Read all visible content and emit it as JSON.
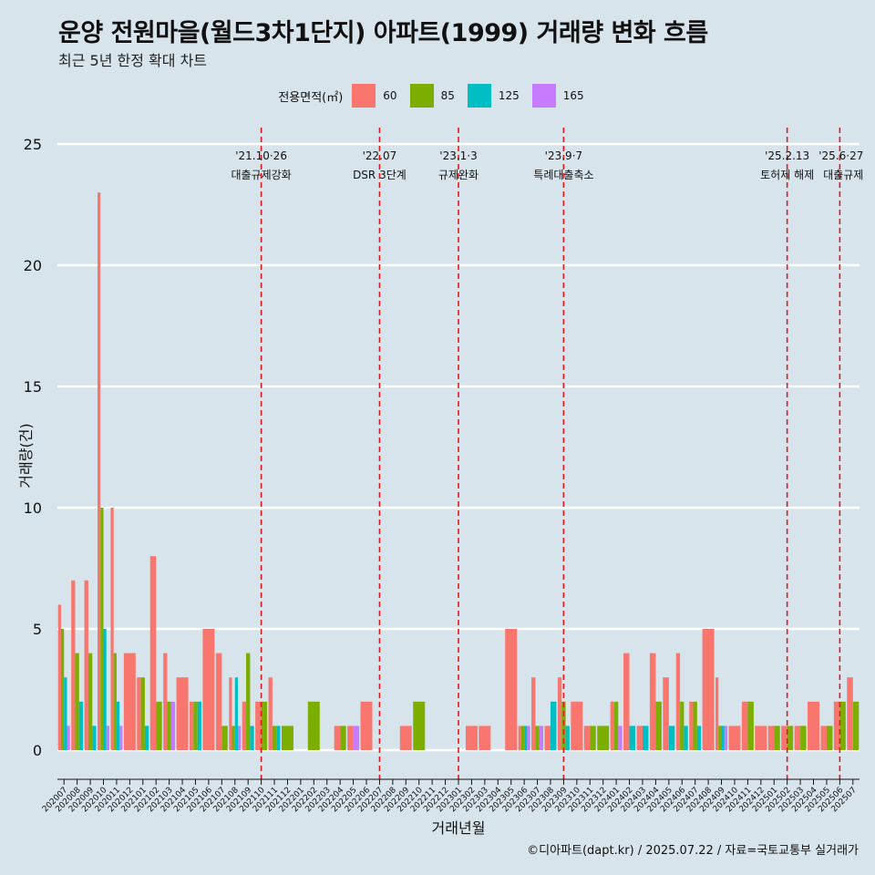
{
  "title": "운양 전원마을(월드3차1단지) 아파트(1999) 거래량 변화 흐름",
  "subtitle": "최근 5년 한정 확대 차트",
  "legend": {
    "title": "전용면적(㎡)"
  },
  "caption": "©디아파트(dapt.kr) / 2025.07.22 / 자료=국토교통부 실거래가",
  "chart_data": {
    "type": "bar",
    "xlabel": "거래년월",
    "ylabel": "거래량(건)",
    "ylim": [
      0,
      25
    ],
    "yticks": [
      0,
      5,
      10,
      15,
      20,
      25
    ],
    "grid": true,
    "legend_position": "top",
    "categories": [
      "202007",
      "202008",
      "202009",
      "202010",
      "202011",
      "202012",
      "202101",
      "202102",
      "202103",
      "202104",
      "202105",
      "202106",
      "202107",
      "202108",
      "202109",
      "202110",
      "202111",
      "202112",
      "202201",
      "202202",
      "202203",
      "202204",
      "202205",
      "202206",
      "202207",
      "202208",
      "202209",
      "202210",
      "202211",
      "202212",
      "202301",
      "202302",
      "202303",
      "202304",
      "202305",
      "202306",
      "202307",
      "202308",
      "202309",
      "202310",
      "202311",
      "202312",
      "202401",
      "202402",
      "202403",
      "202404",
      "202405",
      "202406",
      "202407",
      "202408",
      "202409",
      "202410",
      "202411",
      "202412",
      "202501",
      "202502",
      "202503",
      "202504",
      "202505",
      "202506",
      "202507"
    ],
    "series": [
      {
        "name": "60",
        "color": "#F8766D",
        "values": [
          6,
          7,
          7,
          23,
          10,
          4,
          3,
          8,
          4,
          3,
          2,
          5,
          4,
          3,
          2,
          2,
          3,
          0,
          0,
          0,
          0,
          1,
          1,
          2,
          0,
          0,
          1,
          0,
          0,
          0,
          0,
          1,
          1,
          0,
          5,
          1,
          3,
          1,
          3,
          2,
          1,
          0,
          2,
          4,
          1,
          4,
          3,
          4,
          2,
          5,
          3,
          1,
          2,
          1,
          1,
          1,
          1,
          2,
          1,
          2,
          3
        ]
      },
      {
        "name": "85",
        "color": "#7CAE00",
        "values": [
          5,
          4,
          4,
          10,
          4,
          0,
          3,
          2,
          2,
          0,
          2,
          0,
          1,
          1,
          4,
          2,
          1,
          1,
          0,
          2,
          0,
          1,
          0,
          0,
          0,
          0,
          0,
          2,
          0,
          0,
          0,
          0,
          0,
          0,
          0,
          1,
          1,
          0,
          2,
          0,
          1,
          1,
          2,
          0,
          0,
          2,
          0,
          2,
          2,
          0,
          1,
          0,
          2,
          0,
          1,
          1,
          1,
          0,
          1,
          2,
          2
        ]
      },
      {
        "name": "125",
        "color": "#00BFC4",
        "values": [
          3,
          2,
          1,
          5,
          2,
          0,
          1,
          0,
          0,
          0,
          2,
          0,
          0,
          3,
          1,
          0,
          1,
          0,
          0,
          0,
          0,
          0,
          0,
          0,
          0,
          0,
          0,
          0,
          0,
          0,
          0,
          0,
          0,
          0,
          0,
          1,
          0,
          2,
          1,
          0,
          0,
          0,
          0,
          1,
          1,
          0,
          1,
          1,
          1,
          0,
          1,
          0,
          0,
          0,
          0,
          0,
          0,
          0,
          0,
          0,
          0
        ]
      },
      {
        "name": "165",
        "color": "#C77CFF",
        "values": [
          1,
          0,
          0,
          1,
          1,
          0,
          0,
          0,
          2,
          0,
          0,
          0,
          0,
          1,
          0,
          0,
          0,
          0,
          0,
          0,
          0,
          0,
          1,
          0,
          0,
          0,
          0,
          0,
          0,
          0,
          0,
          0,
          0,
          0,
          0,
          1,
          1,
          0,
          0,
          0,
          0,
          0,
          1,
          0,
          0,
          0,
          0,
          0,
          0,
          0,
          1,
          0,
          0,
          0,
          0,
          0,
          0,
          0,
          0,
          0,
          0
        ]
      }
    ],
    "annotations": [
      {
        "category": "202110",
        "date": "'21.10·26",
        "label": "대출규제강화"
      },
      {
        "category": "202207",
        "date": "'22.07",
        "label": "DSR 3단계"
      },
      {
        "category": "202301",
        "date": "'23.1·3",
        "label": "규제완화"
      },
      {
        "category": "202309",
        "date": "'23.9·7",
        "label": "특례대출축소"
      },
      {
        "category": "202502",
        "date": "'25.2.13",
        "label": "토허제 해제"
      },
      {
        "category": "202506",
        "date": "'25.6·27",
        "label": "대출규제"
      }
    ]
  }
}
